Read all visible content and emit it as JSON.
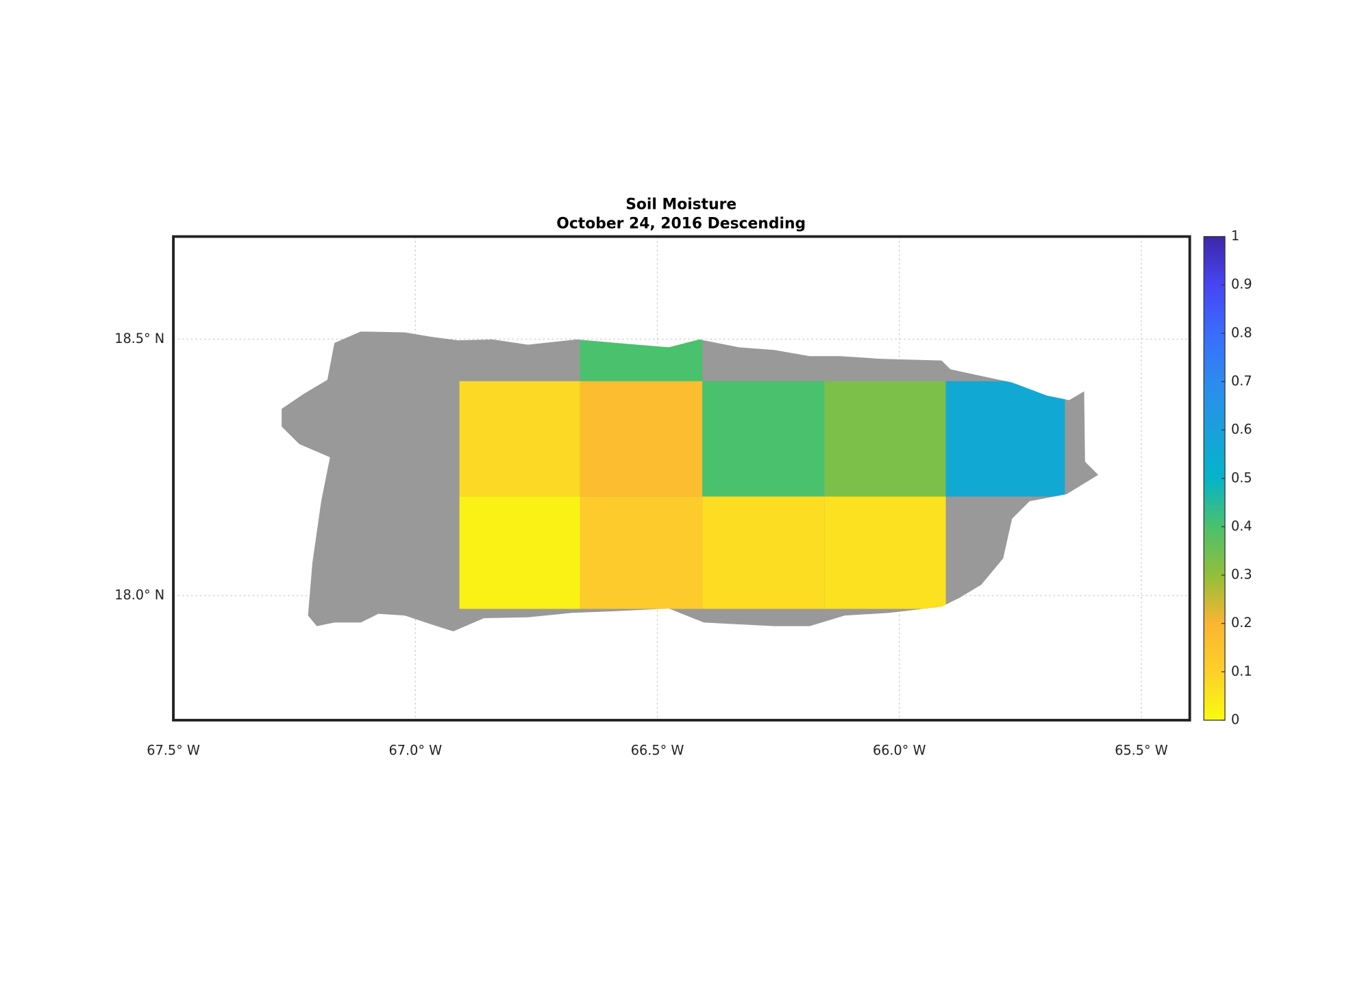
{
  "chart_data": {
    "type": "gridmap",
    "title": "Soil Moisture",
    "subtitle": "October 24, 2016 Descending",
    "xlim": [
      -67.5,
      -65.4
    ],
    "ylim": [
      17.757,
      18.7
    ],
    "xticks": [
      {
        "value": -67.5,
        "label": "67.5° W"
      },
      {
        "value": -67.0,
        "label": "67.0° W"
      },
      {
        "value": -66.5,
        "label": "66.5° W"
      },
      {
        "value": -66.0,
        "label": "66.0° W"
      },
      {
        "value": -65.5,
        "label": "65.5° W"
      }
    ],
    "yticks": [
      {
        "value": 18.0,
        "label": "18.0° N"
      },
      {
        "value": 18.5,
        "label": "18.5° N"
      }
    ],
    "grid": true,
    "land_color": "#999999",
    "cells": [
      {
        "lon": [
          -66.66,
          -66.407
        ],
        "lat": [
          18.418,
          18.5
        ],
        "value": 0.4
      },
      {
        "lon": [
          -66.909,
          -66.66
        ],
        "lat": [
          18.193,
          18.418
        ],
        "value": 0.08
      },
      {
        "lon": [
          -66.66,
          -66.407
        ],
        "lat": [
          18.193,
          18.418
        ],
        "value": 0.17
      },
      {
        "lon": [
          -66.407,
          -66.155
        ],
        "lat": [
          18.193,
          18.418
        ],
        "value": 0.4
      },
      {
        "lon": [
          -66.155,
          -65.904
        ],
        "lat": [
          18.193,
          18.418
        ],
        "value": 0.33
      },
      {
        "lon": [
          -65.904,
          -65.658
        ],
        "lat": [
          18.193,
          18.418
        ],
        "value": 0.56
      },
      {
        "lon": [
          -66.909,
          -66.66
        ],
        "lat": [
          17.974,
          18.193
        ],
        "value": 0.02
      },
      {
        "lon": [
          -66.66,
          -66.407
        ],
        "lat": [
          17.974,
          18.193
        ],
        "value": 0.12
      },
      {
        "lon": [
          -66.407,
          -66.155
        ],
        "lat": [
          17.974,
          18.193
        ],
        "value": 0.07
      },
      {
        "lon": [
          -66.155,
          -65.904
        ],
        "lat": [
          17.974,
          18.193
        ],
        "value": 0.06
      }
    ],
    "clim": [
      0,
      1
    ],
    "cticks": [
      0,
      0.1,
      0.2,
      0.3,
      0.4,
      0.5,
      0.6,
      0.7,
      0.8,
      0.9,
      1
    ],
    "colormap": [
      "#f9fb0e",
      "#fdd02a",
      "#fbb532",
      "#92bf3a",
      "#4ac16d",
      "#05b4c9",
      "#1aa0dc",
      "#2d8aef",
      "#3a6cfd",
      "#4745f4",
      "#3e26a8"
    ]
  }
}
